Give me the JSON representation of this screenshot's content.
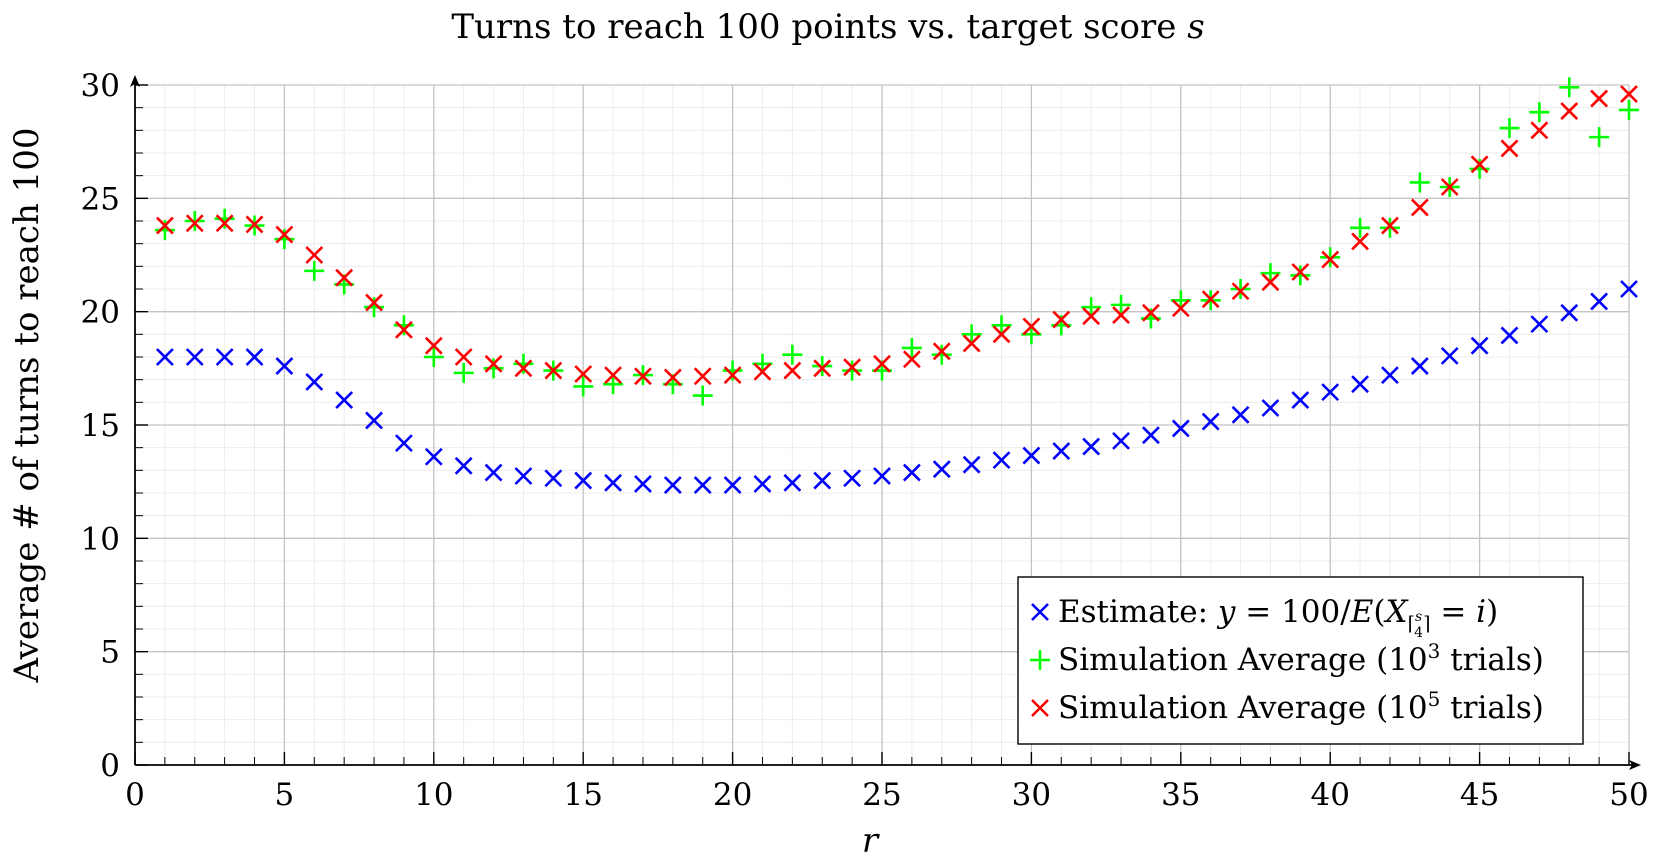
{
  "chart_data": {
    "type": "scatter",
    "title": "Turns to reach 100 points vs. target score s",
    "xlabel": "r",
    "ylabel": "Average # of turns to reach 100",
    "xlim": [
      0,
      50
    ],
    "ylim": [
      0,
      30
    ],
    "xticks": [
      0,
      5,
      10,
      15,
      20,
      25,
      30,
      35,
      40,
      45,
      50
    ],
    "yticks": [
      0,
      5,
      10,
      15,
      20,
      25,
      30
    ],
    "grid": true,
    "legend_position": "bottom-right",
    "x": [
      1,
      2,
      3,
      4,
      5,
      6,
      7,
      8,
      9,
      10,
      11,
      12,
      13,
      14,
      15,
      16,
      17,
      18,
      19,
      20,
      21,
      22,
      23,
      24,
      25,
      26,
      27,
      28,
      29,
      30,
      31,
      32,
      33,
      34,
      35,
      36,
      37,
      38,
      39,
      40,
      41,
      42,
      43,
      44,
      45,
      46,
      47,
      48,
      49,
      50
    ],
    "series": [
      {
        "name": "Estimate: y = 100/E(X⌈s/4⌉ = i)",
        "marker": "x",
        "color": "#0000ff",
        "values": [
          18.0,
          18.0,
          18.0,
          18.0,
          17.6,
          16.9,
          16.1,
          15.2,
          14.2,
          13.6,
          13.2,
          12.9,
          12.75,
          12.65,
          12.55,
          12.45,
          12.4,
          12.35,
          12.35,
          12.35,
          12.4,
          12.45,
          12.55,
          12.65,
          12.75,
          12.9,
          13.05,
          13.25,
          13.45,
          13.65,
          13.85,
          14.05,
          14.3,
          14.55,
          14.85,
          15.15,
          15.45,
          15.75,
          16.1,
          16.45,
          16.8,
          17.2,
          17.6,
          18.05,
          18.5,
          18.95,
          19.45,
          19.95,
          20.45,
          21.0
        ]
      },
      {
        "name": "Simulation Average (10^3 trials)",
        "marker": "+",
        "color": "#00ff00",
        "values": [
          23.6,
          24.0,
          24.1,
          23.8,
          23.2,
          21.8,
          21.2,
          20.2,
          19.4,
          18.0,
          17.3,
          17.5,
          17.7,
          17.4,
          16.7,
          16.8,
          17.2,
          16.8,
          16.3,
          17.4,
          17.7,
          18.1,
          17.6,
          17.4,
          17.4,
          18.4,
          18.1,
          19.0,
          19.4,
          19.0,
          19.4,
          20.2,
          20.3,
          19.7,
          20.5,
          20.5,
          21.0,
          21.7,
          21.6,
          22.4,
          23.7,
          23.7,
          25.7,
          25.5,
          26.3,
          28.1,
          28.8,
          29.9,
          27.7,
          28.9
        ]
      },
      {
        "name": "Simulation Average (10^5 trials)",
        "marker": "x",
        "color": "#ff0000",
        "values": [
          23.8,
          23.9,
          23.9,
          23.85,
          23.4,
          22.5,
          21.5,
          20.4,
          19.2,
          18.5,
          18.0,
          17.7,
          17.5,
          17.4,
          17.25,
          17.2,
          17.15,
          17.1,
          17.15,
          17.2,
          17.35,
          17.4,
          17.5,
          17.55,
          17.7,
          17.9,
          18.25,
          18.6,
          19.0,
          19.35,
          19.65,
          19.8,
          19.85,
          19.95,
          20.15,
          20.55,
          20.9,
          21.3,
          21.75,
          22.3,
          23.1,
          23.8,
          24.6,
          25.5,
          26.5,
          27.2,
          28.0,
          28.85,
          29.4,
          29.6
        ]
      }
    ],
    "legend": {
      "estimate_prefix": "Estimate: ",
      "estimate_eq1": "y",
      "estimate_eq2": " = 100/",
      "estimate_eq3": "E",
      "estimate_eq4": "(",
      "estimate_eq5": "X",
      "estimate_sub": "⌈",
      "estimate_frac_num": "s",
      "estimate_frac_den": "4",
      "estimate_sub_close": "⌉",
      "estimate_eq6": " = ",
      "estimate_eq7": "i",
      "estimate_eq8": ")",
      "sim1_prefix": "Simulation Average (10",
      "sim1_exp": "3",
      "sim1_suffix": " trials)",
      "sim2_prefix": "Simulation Average (10",
      "sim2_exp": "5",
      "sim2_suffix": " trials)"
    }
  }
}
